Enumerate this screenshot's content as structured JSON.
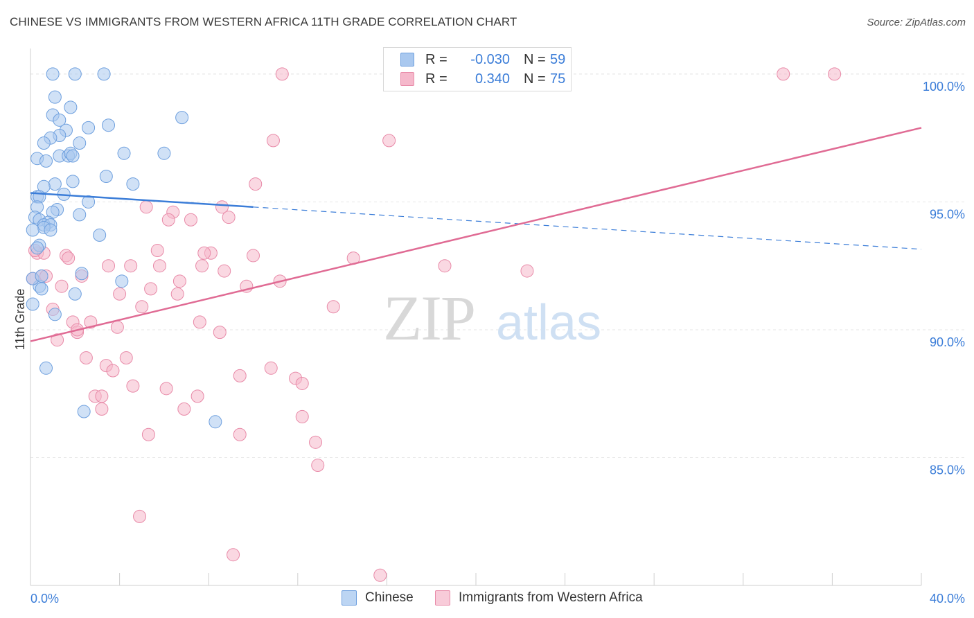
{
  "header": {
    "title": "CHINESE VS IMMIGRANTS FROM WESTERN AFRICA 11TH GRADE CORRELATION CHART",
    "source": "Source: ZipAtlas.com"
  },
  "watermark": {
    "zip": "ZIP",
    "atlas": "atlas"
  },
  "legend": {
    "rows": [
      {
        "r_label": "R =",
        "r_value": "-0.030",
        "n_label": "N =",
        "n_value": "59"
      },
      {
        "r_label": "R =",
        "r_value": "0.340",
        "n_label": "N =",
        "n_value": "75"
      }
    ]
  },
  "bottom_legend": {
    "items": [
      {
        "label": "Chinese"
      },
      {
        "label": "Immigrants from Western Africa"
      }
    ]
  },
  "colors": {
    "blue_fill": "#a9c8ef",
    "blue_stroke": "#6d9fde",
    "blue_line": "#3b7dd8",
    "pink_fill": "#f5b8cb",
    "pink_stroke": "#e88aa8",
    "pink_line": "#e06b94",
    "tick_label": "#3b7dd8",
    "grid": "#e6e6e6"
  },
  "chart_data": {
    "type": "scatter",
    "title": "CHINESE VS IMMIGRANTS FROM WESTERN AFRICA 11TH GRADE CORRELATION CHART",
    "xlabel": "",
    "ylabel": "11th Grade",
    "xlim": [
      0,
      40
    ],
    "ylim": [
      80,
      101
    ],
    "x_tick_labels": [
      "0.0%",
      "40.0%"
    ],
    "y_ticks": [
      85,
      90,
      95,
      100
    ],
    "y_tick_labels": [
      "85.0%",
      "90.0%",
      "95.0%",
      "100.0%"
    ],
    "grid": true,
    "legend_position": "top-center",
    "series": [
      {
        "name": "Chinese",
        "r": -0.03,
        "n": 59,
        "trend": {
          "x0": 0,
          "y0": 95.35,
          "x1": 10,
          "y1": 94.8,
          "x_end": 40,
          "y_end": 93.15
        },
        "points": [
          [
            1.0,
            100
          ],
          [
            2.0,
            100
          ],
          [
            3.3,
            100
          ],
          [
            1.1,
            99.1
          ],
          [
            1.8,
            98.7
          ],
          [
            1.0,
            98.4
          ],
          [
            1.3,
            98.2
          ],
          [
            6.8,
            98.3
          ],
          [
            1.6,
            97.8
          ],
          [
            2.6,
            97.9
          ],
          [
            3.5,
            98.0
          ],
          [
            1.3,
            97.6
          ],
          [
            0.9,
            97.5
          ],
          [
            0.6,
            97.3
          ],
          [
            2.2,
            97.3
          ],
          [
            0.3,
            96.7
          ],
          [
            0.7,
            96.6
          ],
          [
            1.3,
            96.8
          ],
          [
            1.7,
            96.8
          ],
          [
            1.8,
            96.9
          ],
          [
            1.9,
            96.8
          ],
          [
            4.2,
            96.9
          ],
          [
            6.0,
            96.9
          ],
          [
            3.4,
            96.0
          ],
          [
            1.1,
            95.7
          ],
          [
            1.9,
            95.8
          ],
          [
            4.6,
            95.7
          ],
          [
            0.6,
            95.6
          ],
          [
            1.5,
            95.3
          ],
          [
            0.3,
            95.2
          ],
          [
            0.4,
            95.2
          ],
          [
            2.6,
            95.0
          ],
          [
            0.3,
            94.8
          ],
          [
            1.2,
            94.7
          ],
          [
            1.0,
            94.6
          ],
          [
            2.2,
            94.5
          ],
          [
            0.2,
            94.4
          ],
          [
            0.4,
            94.3
          ],
          [
            0.8,
            94.2
          ],
          [
            0.6,
            94.1
          ],
          [
            0.9,
            94.1
          ],
          [
            0.6,
            94.0
          ],
          [
            0.9,
            93.9
          ],
          [
            0.1,
            93.9
          ],
          [
            3.1,
            93.7
          ],
          [
            0.4,
            93.3
          ],
          [
            0.3,
            93.2
          ],
          [
            2.3,
            92.2
          ],
          [
            4.1,
            91.9
          ],
          [
            0.4,
            91.7
          ],
          [
            0.5,
            91.6
          ],
          [
            2.0,
            91.4
          ],
          [
            0.1,
            91.0
          ],
          [
            1.1,
            90.6
          ],
          [
            0.7,
            88.5
          ],
          [
            2.4,
            86.8
          ],
          [
            8.3,
            86.4
          ],
          [
            0.1,
            92.0
          ],
          [
            0.5,
            92.1
          ]
        ]
      },
      {
        "name": "Immigrants from Western Africa",
        "r": 0.34,
        "n": 75,
        "trend": {
          "x0": 0,
          "y0": 89.55,
          "x1": 40,
          "y1": 97.9
        },
        "points": [
          [
            11.3,
            100
          ],
          [
            16.5,
            100
          ],
          [
            33.8,
            100
          ],
          [
            36.1,
            100
          ],
          [
            10.9,
            97.4
          ],
          [
            16.1,
            97.4
          ],
          [
            10.1,
            95.7
          ],
          [
            5.2,
            94.8
          ],
          [
            6.4,
            94.6
          ],
          [
            8.6,
            94.8
          ],
          [
            6.2,
            94.3
          ],
          [
            7.2,
            94.3
          ],
          [
            8.9,
            94.4
          ],
          [
            0.3,
            93.0
          ],
          [
            0.6,
            93.0
          ],
          [
            5.7,
            93.1
          ],
          [
            8.1,
            93.0
          ],
          [
            7.8,
            93.0
          ],
          [
            10.0,
            92.9
          ],
          [
            14.5,
            92.8
          ],
          [
            18.6,
            92.5
          ],
          [
            1.6,
            92.9
          ],
          [
            1.7,
            92.8
          ],
          [
            3.5,
            92.5
          ],
          [
            4.5,
            92.5
          ],
          [
            5.8,
            92.5
          ],
          [
            7.7,
            92.5
          ],
          [
            8.7,
            92.3
          ],
          [
            22.3,
            92.3
          ],
          [
            0.5,
            92.1
          ],
          [
            0.7,
            92.1
          ],
          [
            2.3,
            92.1
          ],
          [
            6.7,
            91.9
          ],
          [
            11.2,
            91.9
          ],
          [
            1.4,
            91.7
          ],
          [
            5.4,
            91.6
          ],
          [
            9.7,
            91.7
          ],
          [
            4.0,
            91.4
          ],
          [
            6.6,
            91.4
          ],
          [
            5.0,
            90.9
          ],
          [
            13.6,
            90.9
          ],
          [
            1.0,
            90.8
          ],
          [
            1.9,
            90.3
          ],
          [
            2.7,
            90.3
          ],
          [
            7.6,
            90.3
          ],
          [
            3.9,
            90.1
          ],
          [
            2.1,
            89.9
          ],
          [
            8.5,
            89.9
          ],
          [
            1.2,
            89.6
          ],
          [
            2.5,
            88.9
          ],
          [
            4.3,
            88.9
          ],
          [
            3.4,
            88.6
          ],
          [
            3.7,
            88.4
          ],
          [
            10.8,
            88.5
          ],
          [
            9.4,
            88.2
          ],
          [
            11.9,
            88.1
          ],
          [
            12.2,
            87.9
          ],
          [
            4.6,
            87.8
          ],
          [
            6.1,
            87.7
          ],
          [
            2.9,
            87.4
          ],
          [
            3.2,
            87.4
          ],
          [
            7.5,
            87.4
          ],
          [
            6.9,
            86.9
          ],
          [
            12.2,
            86.6
          ],
          [
            5.3,
            85.9
          ],
          [
            9.4,
            85.9
          ],
          [
            12.8,
            85.6
          ],
          [
            12.9,
            84.7
          ],
          [
            4.9,
            82.7
          ],
          [
            9.1,
            81.2
          ],
          [
            15.7,
            80.4
          ],
          [
            0.1,
            92.0
          ],
          [
            0.2,
            93.1
          ],
          [
            3.2,
            86.9
          ],
          [
            2.1,
            90.0
          ]
        ]
      }
    ]
  }
}
